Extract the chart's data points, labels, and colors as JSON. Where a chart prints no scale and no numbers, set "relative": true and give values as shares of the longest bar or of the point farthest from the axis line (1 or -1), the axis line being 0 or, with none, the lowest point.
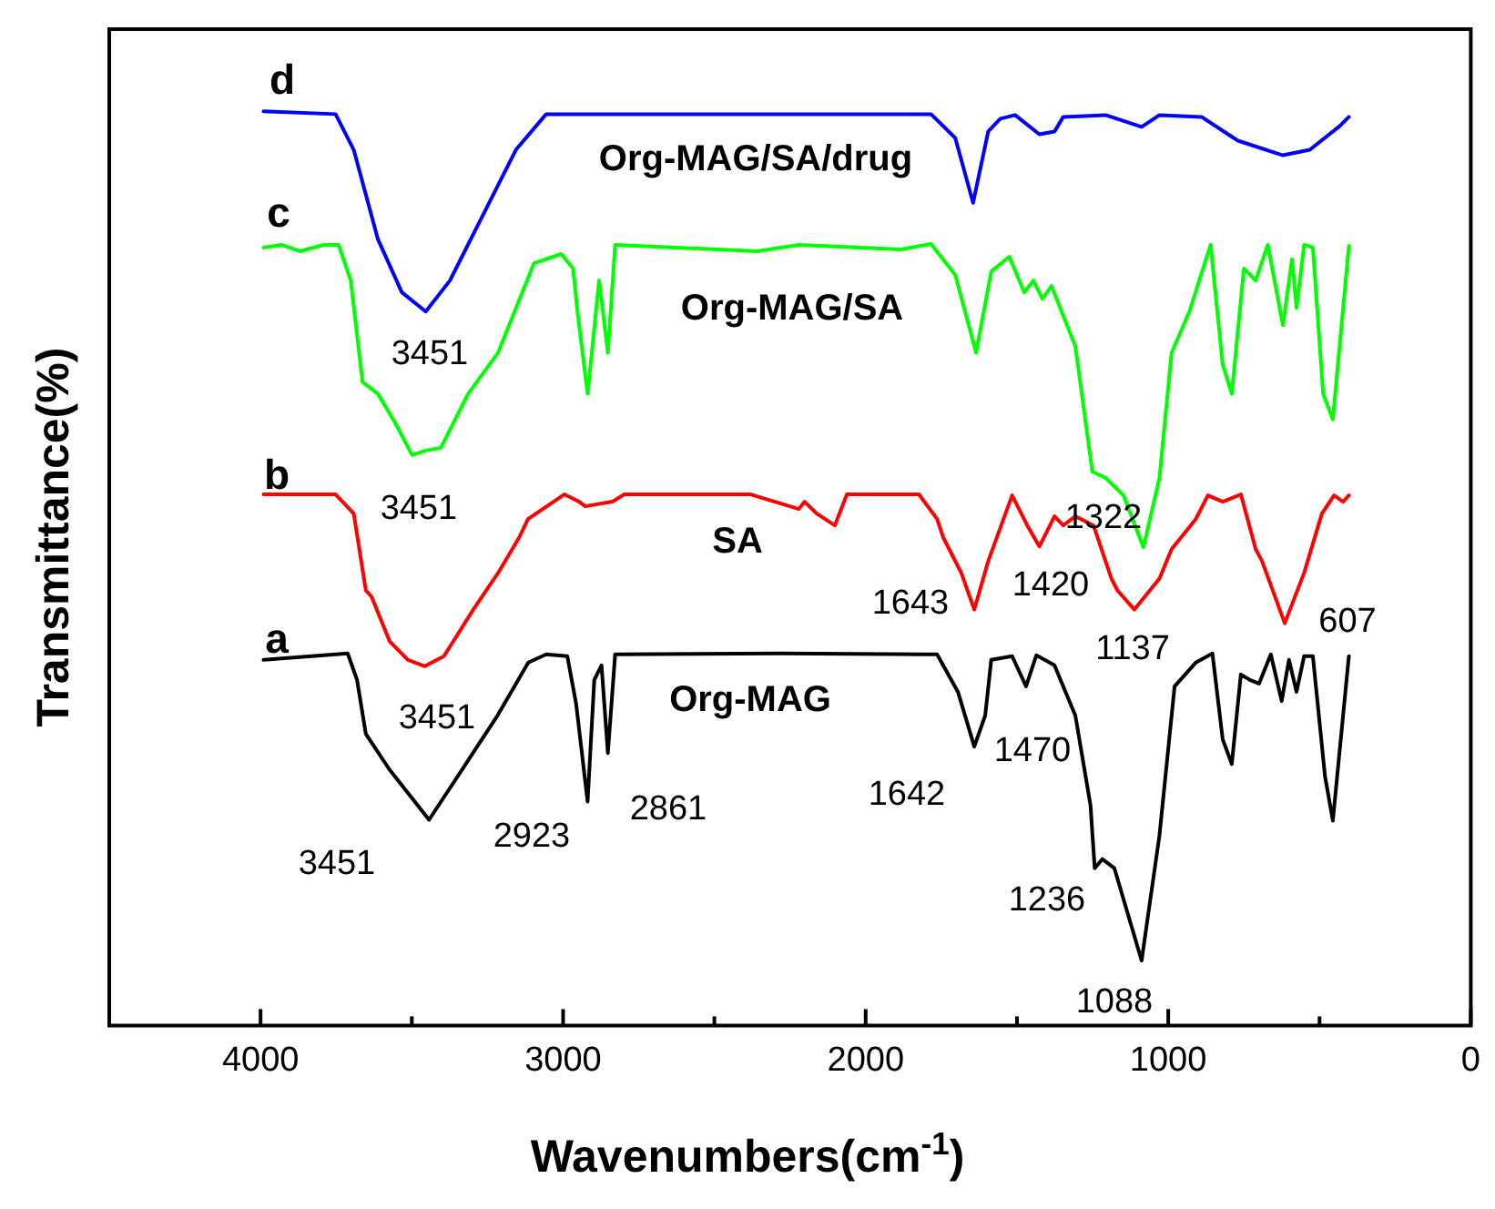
{
  "chart_data": {
    "type": "line",
    "relative": true,
    "xlabel": "Wavenumbers(cm$^{-1}$)",
    "ylabel": "Transmittance(%)",
    "xlim": [
      4500,
      0
    ],
    "xticks": [
      {
        "value": 4500,
        "label": null
      },
      4000,
      {
        "value": 3500,
        "label": null
      },
      3000,
      {
        "value": 2500,
        "label": null
      },
      2000,
      {
        "value": 1500,
        "label": null
      },
      1000,
      {
        "value": 500,
        "label": null
      },
      0
    ],
    "grid": false,
    "legend": false,
    "marker": "none",
    "line_style": "solid",
    "series": [
      {
        "color": "#000000",
        "x": [
          3990,
          3712,
          3681,
          3652,
          3574,
          3443,
          3294,
          3217,
          3115,
          3056,
          2986,
          2957,
          2919,
          2897,
          2873,
          2852,
          2828,
          2281,
          1764,
          1695,
          1641,
          1605,
          1585,
          1516,
          1470,
          1436,
          1376,
          1307,
          1257,
          1243,
          1218,
          1178,
          1088,
          1029,
          979,
          909,
          854,
          820,
          790,
          760,
          730,
          700,
          661,
          625,
          601,
          576,
          551,
          522,
          482,
          456,
          403
        ],
        "values": [
          0.4,
          0.407,
          0.378,
          0.319,
          0.28,
          0.225,
          0.3,
          0.339,
          0.397,
          0.406,
          0.404,
          0.352,
          0.245,
          0.378,
          0.394,
          0.298,
          0.406,
          0.407,
          0.406,
          0.365,
          0.305,
          0.339,
          0.4,
          0.404,
          0.371,
          0.405,
          0.394,
          0.339,
          0.241,
          0.172,
          0.182,
          0.172,
          0.071,
          0.208,
          0.371,
          0.397,
          0.407,
          0.313,
          0.286,
          0.384,
          0.378,
          0.374,
          0.406,
          0.355,
          0.4,
          0.365,
          0.404,
          0.404,
          0.273,
          0.224,
          0.404
        ]
      },
      {
        "color": "#ff0000",
        "x": [
          3990,
          3752,
          3692,
          3652,
          3633,
          3573,
          3513,
          3457,
          3394,
          3295,
          3215,
          3145,
          3116,
          2996,
          2947,
          2927,
          2837,
          2798,
          2380,
          2221,
          2202,
          2162,
          2102,
          2062,
          1824,
          1764,
          1744,
          1684,
          1641,
          1595,
          1516,
          1466,
          1426,
          1376,
          1347,
          1307,
          1247,
          1188,
          1168,
          1112,
          1029,
          989,
          909,
          869,
          820,
          760,
          711,
          690,
          615,
          551,
          492,
          452,
          422,
          403
        ],
        "values": [
          0.581,
          0.581,
          0.56,
          0.476,
          0.469,
          0.42,
          0.4,
          0.393,
          0.404,
          0.456,
          0.495,
          0.534,
          0.554,
          0.581,
          0.573,
          0.568,
          0.573,
          0.581,
          0.581,
          0.565,
          0.573,
          0.56,
          0.547,
          0.581,
          0.581,
          0.554,
          0.534,
          0.495,
          0.455,
          0.508,
          0.58,
          0.547,
          0.524,
          0.557,
          0.547,
          0.557,
          0.547,
          0.489,
          0.476,
          0.455,
          0.489,
          0.521,
          0.554,
          0.58,
          0.573,
          0.581,
          0.521,
          0.508,
          0.44,
          0.495,
          0.56,
          0.58,
          0.573,
          0.58
        ]
      },
      {
        "color": "#00ff00",
        "x": [
          3990,
          3931,
          3871,
          3791,
          3742,
          3702,
          3663,
          3612,
          3553,
          3499,
          3454,
          3404,
          3314,
          3215,
          3096,
          3006,
          2967,
          2953,
          2919,
          2881,
          2852,
          2828,
          2360,
          2221,
          1883,
          1784,
          1704,
          1635,
          1585,
          1525,
          1476,
          1446,
          1416,
          1386,
          1307,
          1251,
          1207,
          1148,
          1082,
          1029,
          989,
          929,
          860,
          820,
          790,
          750,
          711,
          671,
          621,
          591,
          576,
          551,
          522,
          488,
          456,
          403
        ],
        "values": [
          0.851,
          0.854,
          0.847,
          0.854,
          0.854,
          0.815,
          0.704,
          0.691,
          0.658,
          0.624,
          0.629,
          0.632,
          0.691,
          0.736,
          0.834,
          0.844,
          0.828,
          0.782,
          0.691,
          0.815,
          0.736,
          0.854,
          0.847,
          0.854,
          0.849,
          0.855,
          0.821,
          0.736,
          0.825,
          0.841,
          0.802,
          0.815,
          0.795,
          0.809,
          0.743,
          0.606,
          0.599,
          0.58,
          0.523,
          0.599,
          0.736,
          0.782,
          0.854,
          0.723,
          0.691,
          0.828,
          0.815,
          0.854,
          0.766,
          0.838,
          0.785,
          0.854,
          0.851,
          0.691,
          0.663,
          0.853
        ]
      },
      {
        "color": "#0000ff",
        "x": [
          3990,
          3752,
          3692,
          3612,
          3533,
          3454,
          3374,
          3275,
          3156,
          3056,
          2221,
          1784,
          1704,
          1645,
          1595,
          1555,
          1506,
          1426,
          1376,
          1347,
          1207,
          1088,
          1029,
          890,
          770,
          621,
          532,
          433,
          403
        ],
        "values": [
          1.0,
          0.997,
          0.958,
          0.86,
          0.802,
          0.781,
          0.815,
          0.88,
          0.958,
          0.997,
          0.997,
          0.997,
          0.971,
          0.9,
          0.978,
          0.992,
          0.996,
          0.975,
          0.978,
          0.994,
          0.996,
          0.983,
          0.996,
          0.994,
          0.968,
          0.952,
          0.958,
          0.984,
          0.994
        ]
      }
    ],
    "annotations": [
      "d",
      "Org-MAG/SA/drug",
      "c",
      "3451",
      "Org-MAG/SA",
      "3451",
      "b",
      "SA",
      "1322",
      "1643",
      "1420",
      "1137",
      "607",
      "a",
      "3451",
      "Org-MAG",
      "1470",
      "1642",
      "3451",
      "2923",
      "2861",
      "1236",
      "1088"
    ]
  }
}
